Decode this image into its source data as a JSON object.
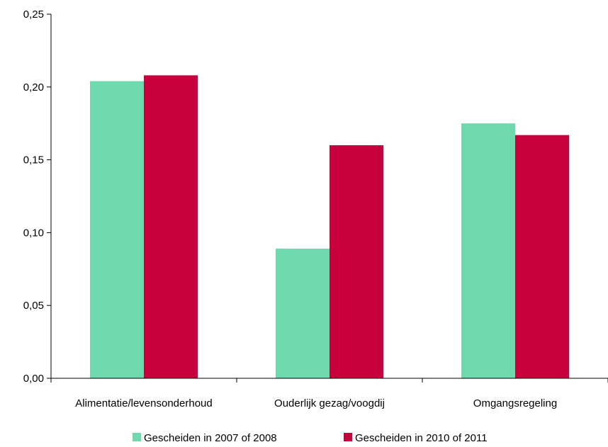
{
  "chart_data": {
    "type": "bar",
    "categories": [
      "Alimentatie/levensonderhoud",
      "Ouderlijk gezag/voogdij",
      "Omgangsregeling"
    ],
    "series": [
      {
        "name": "Gescheiden in 2007 of 2008",
        "values": [
          0.204,
          0.089,
          0.175
        ],
        "color": "#6dd9ad"
      },
      {
        "name": "Gescheiden in 2010 of 2011",
        "values": [
          0.208,
          0.16,
          0.167
        ],
        "color": "#c8003c"
      }
    ],
    "yticks": [
      "0,00",
      "0,05",
      "0,10",
      "0,15",
      "0,20",
      "0,25"
    ],
    "ylim": [
      0,
      0.25
    ],
    "grid": false,
    "legend_position": "bottom",
    "title": "",
    "xlabel": "",
    "ylabel": ""
  }
}
